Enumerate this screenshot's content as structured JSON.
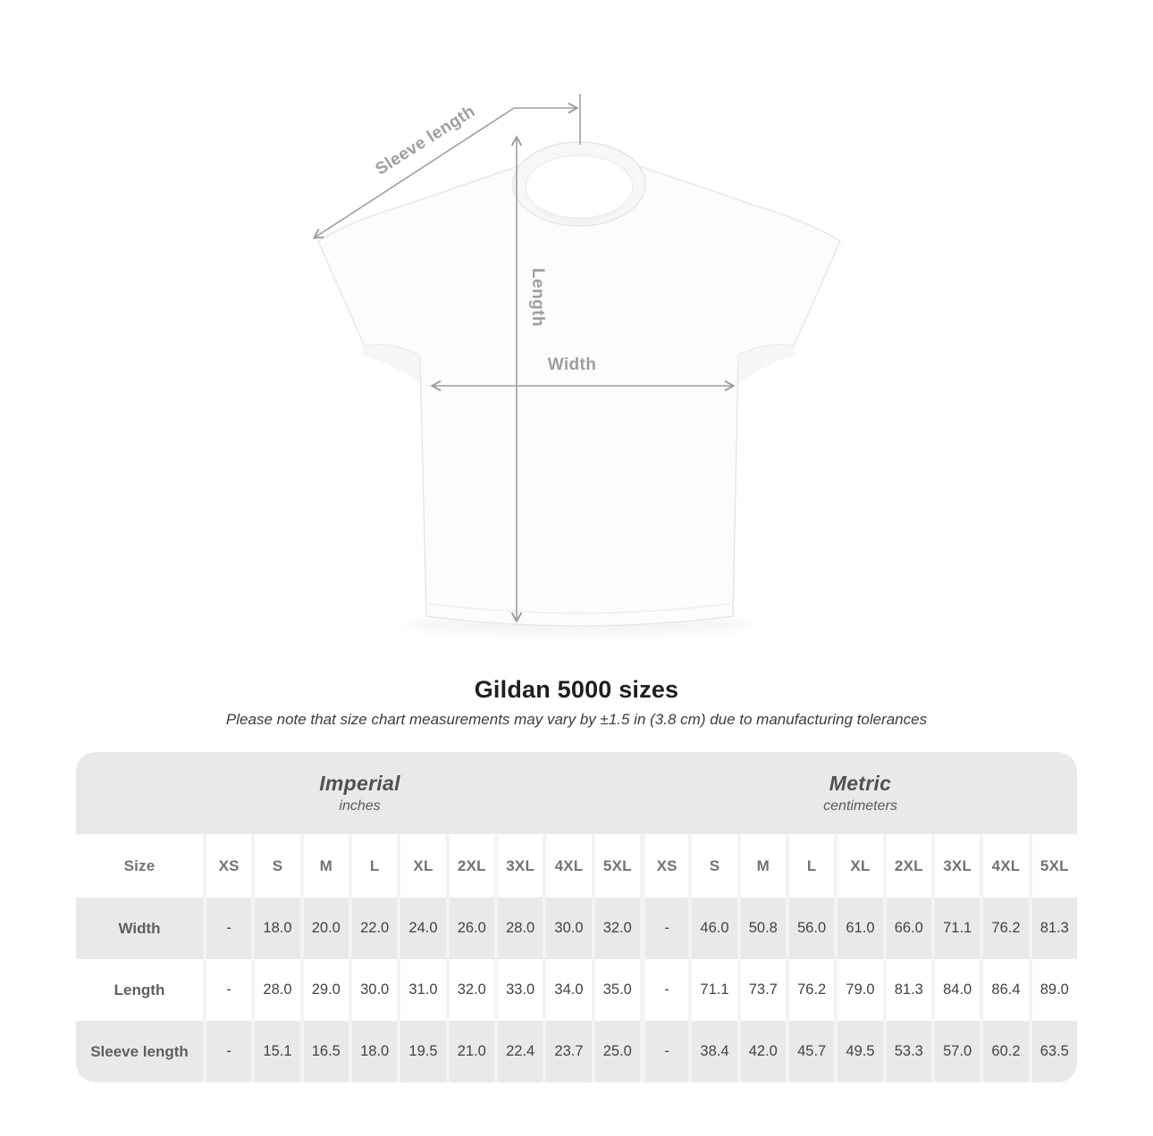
{
  "title": "Gildan 5000 sizes",
  "subtitle": "Please note that size chart measurements may vary by ±1.5 in (3.8 cm) due to manufacturing tolerances",
  "diagram": {
    "labels": {
      "sleeve_length": "Sleeve length",
      "length": "Length",
      "width": "Width"
    }
  },
  "table": {
    "imperial": {
      "title": "Imperial",
      "subtitle": "inches"
    },
    "metric": {
      "title": "Metric",
      "subtitle": "centimeters"
    },
    "size_label": "Size",
    "sizes": [
      "XS",
      "S",
      "M",
      "L",
      "XL",
      "2XL",
      "3XL",
      "4XL",
      "5XL"
    ],
    "rows": [
      {
        "label": "Width",
        "imperial": [
          "-",
          "18.0",
          "20.0",
          "22.0",
          "24.0",
          "26.0",
          "28.0",
          "30.0",
          "32.0"
        ],
        "metric": [
          "-",
          "46.0",
          "50.8",
          "56.0",
          "61.0",
          "66.0",
          "71.1",
          "76.2",
          "81.3"
        ]
      },
      {
        "label": "Length",
        "imperial": [
          "-",
          "28.0",
          "29.0",
          "30.0",
          "31.0",
          "32.0",
          "33.0",
          "34.0",
          "35.0"
        ],
        "metric": [
          "-",
          "71.1",
          "73.7",
          "76.2",
          "79.0",
          "81.3",
          "84.0",
          "86.4",
          "89.0"
        ]
      },
      {
        "label": "Sleeve length",
        "imperial": [
          "-",
          "15.1",
          "16.5",
          "18.0",
          "19.5",
          "21.0",
          "22.4",
          "23.7",
          "25.0"
        ],
        "metric": [
          "-",
          "38.4",
          "42.0",
          "45.7",
          "49.5",
          "53.3",
          "57.0",
          "60.2",
          "63.5"
        ]
      }
    ]
  },
  "colors": {
    "band_gray": "#e9e9e9",
    "row_gray": "#e9e9e9",
    "separator": "#f3f3f3",
    "arrow_gray": "#9aa0a4",
    "header_text": "#4c5356",
    "value_text": "#3e4446"
  },
  "chart_data": {
    "type": "table",
    "title": "Gildan 5000 sizes",
    "note": "Size chart measurements may vary by ±1.5 in (3.8 cm) due to manufacturing tolerances",
    "units": {
      "imperial": "inches",
      "metric": "centimeters"
    },
    "sizes": [
      "XS",
      "S",
      "M",
      "L",
      "XL",
      "2XL",
      "3XL",
      "4XL",
      "5XL"
    ],
    "measurements": [
      {
        "name": "Width",
        "imperial_in": [
          null,
          18.0,
          20.0,
          22.0,
          24.0,
          26.0,
          28.0,
          30.0,
          32.0
        ],
        "metric_cm": [
          null,
          46.0,
          50.8,
          56.0,
          61.0,
          66.0,
          71.1,
          76.2,
          81.3
        ]
      },
      {
        "name": "Length",
        "imperial_in": [
          null,
          28.0,
          29.0,
          30.0,
          31.0,
          32.0,
          33.0,
          34.0,
          35.0
        ],
        "metric_cm": [
          null,
          71.1,
          73.7,
          76.2,
          79.0,
          81.3,
          84.0,
          86.4,
          89.0
        ]
      },
      {
        "name": "Sleeve length",
        "imperial_in": [
          null,
          15.1,
          16.5,
          18.0,
          19.5,
          21.0,
          22.4,
          23.7,
          25.0
        ],
        "metric_cm": [
          null,
          38.4,
          42.0,
          45.7,
          49.5,
          53.3,
          57.0,
          60.2,
          63.5
        ]
      }
    ]
  }
}
